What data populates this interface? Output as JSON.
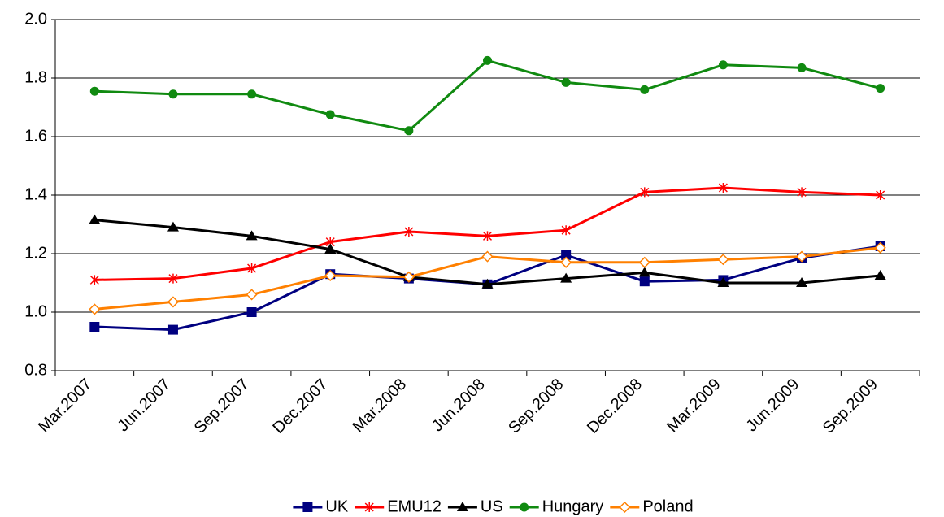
{
  "chart_data": {
    "type": "line",
    "categories": [
      "Mar.2007",
      "Jun.2007",
      "Sep.2007",
      "Dec.2007",
      "Mar.2008",
      "Jun.2008",
      "Sep.2008",
      "Dec.2008",
      "Mar.2009",
      "Jun.2009",
      "Sep.2009"
    ],
    "series": [
      {
        "name": "UK",
        "color": "#000080",
        "marker": "square",
        "values": [
          0.95,
          0.94,
          1.0,
          1.13,
          1.115,
          1.095,
          1.195,
          1.105,
          1.11,
          1.185,
          1.225
        ]
      },
      {
        "name": "EMU12",
        "color": "#ff0000",
        "marker": "star",
        "values": [
          1.11,
          1.115,
          1.15,
          1.24,
          1.275,
          1.26,
          1.28,
          1.41,
          1.425,
          1.41,
          1.4
        ]
      },
      {
        "name": "US",
        "color": "#000000",
        "marker": "triangle",
        "values": [
          1.315,
          1.29,
          1.26,
          1.215,
          1.12,
          1.095,
          1.115,
          1.135,
          1.1,
          1.1,
          1.125
        ]
      },
      {
        "name": "Hungary",
        "color": "#108a10",
        "marker": "circle",
        "values": [
          1.755,
          1.745,
          1.745,
          1.675,
          1.62,
          1.86,
          1.785,
          1.76,
          1.845,
          1.835,
          1.765
        ]
      },
      {
        "name": "Poland",
        "color": "#ff8000",
        "marker": "diamond",
        "values": [
          1.01,
          1.035,
          1.06,
          1.125,
          1.12,
          1.19,
          1.17,
          1.17,
          1.18,
          1.19,
          1.22
        ]
      }
    ],
    "ylim": [
      0.8,
      2.0
    ],
    "yticks": [
      {
        "value": 0.8,
        "label": "0.8"
      },
      {
        "value": 1.0,
        "label": "1.0"
      },
      {
        "value": 1.2,
        "label": "1.2"
      },
      {
        "value": 1.4,
        "label": "1.4"
      },
      {
        "value": 1.6,
        "label": "1.6"
      },
      {
        "value": 1.8,
        "label": "1.8"
      },
      {
        "value": 2.0,
        "label": "2.0"
      }
    ],
    "grid": true,
    "legend": "bottom"
  }
}
